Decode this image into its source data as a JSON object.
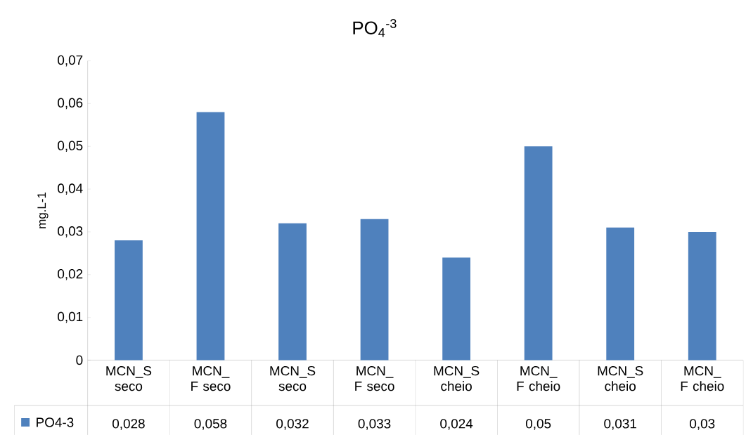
{
  "chart_data": {
    "type": "bar",
    "title": "PO$_{4}$$^{-3}$",
    "ylabel": "mg.L-1",
    "categories": [
      "MCN_S seco",
      "MCN_ F seco",
      "MCN_S seco",
      "MCN_ F seco",
      "MCN_S cheio",
      "MCN_ F cheio",
      "MCN_S cheio",
      "MCN_ F cheio"
    ],
    "series": [
      {
        "name": "PO4-3",
        "color": "#4f81bd",
        "values": [
          0.028,
          0.058,
          0.032,
          0.033,
          0.024,
          0.05,
          0.031,
          0.03
        ],
        "value_labels": [
          "0,028",
          "0,058",
          "0,032",
          "0,033",
          "0,024",
          "0,05",
          "0,031",
          "0,03"
        ]
      }
    ],
    "ylim": [
      0,
      0.07
    ],
    "yticks": [
      0,
      {
        "value": 0.01,
        "label": "0,01"
      },
      {
        "value": 0.02,
        "label": "0,02"
      },
      {
        "value": 0.03,
        "label": "0,03"
      },
      {
        "value": 0.04,
        "label": "0,04"
      },
      {
        "value": 0.05,
        "label": "0,05"
      },
      {
        "value": 0.06,
        "label": "0,06"
      },
      {
        "value": 0.07,
        "label": "0,07"
      }
    ],
    "legend": "bottom",
    "grid": false
  }
}
